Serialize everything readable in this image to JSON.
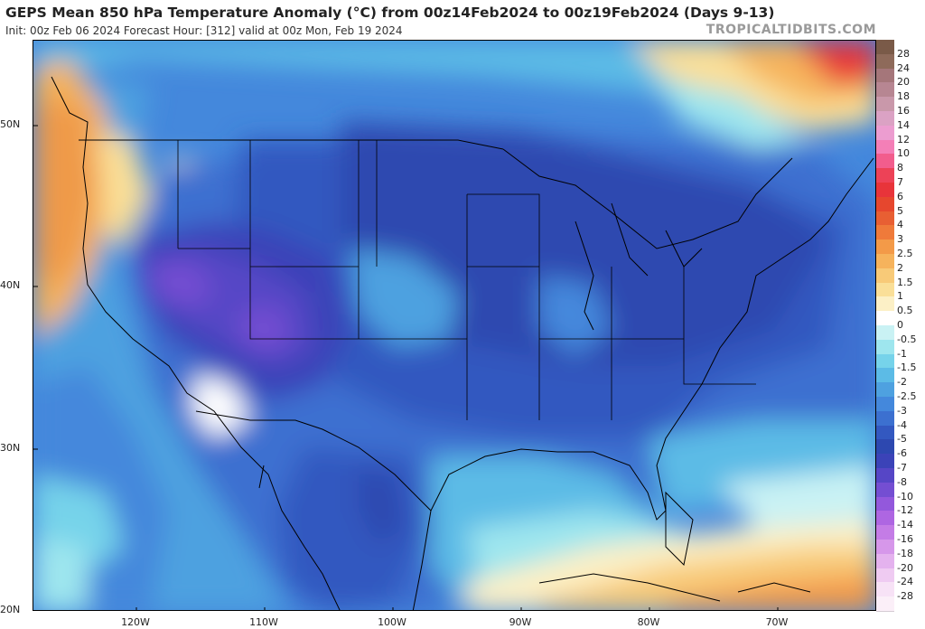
{
  "header": {
    "title": "GEPS Mean 850 hPa Temperature Anomaly (°C) from 00z14Feb2024 to 00z19Feb2024 (Days 9-13)",
    "subtitle": "Init: 00z Feb 06 2024   Forecast Hour: [312]   valid at 00z Mon, Feb 19 2024",
    "brand": "TROPICALTIDBITS.COM"
  },
  "map": {
    "latitude_labels": [
      "50N",
      "40N",
      "30N",
      "20N"
    ],
    "longitude_labels": [
      "120W",
      "110W",
      "100W",
      "90W",
      "80W",
      "70W"
    ]
  },
  "colorbar": {
    "levels": [
      {
        "label": "28",
        "color": "#7a5a48"
      },
      {
        "label": "24",
        "color": "#8e6a5a"
      },
      {
        "label": "20",
        "color": "#a5767a"
      },
      {
        "label": "18",
        "color": "#b78692"
      },
      {
        "label": "16",
        "color": "#c998aa"
      },
      {
        "label": "14",
        "color": "#dba2c4"
      },
      {
        "label": "12",
        "color": "#ec9dd0"
      },
      {
        "label": "10",
        "color": "#f47fb7"
      },
      {
        "label": "8",
        "color": "#f25d8d"
      },
      {
        "label": "7",
        "color": "#ed4257"
      },
      {
        "label": "6",
        "color": "#e8343a"
      },
      {
        "label": "5",
        "color": "#e6472e"
      },
      {
        "label": "4",
        "color": "#e85f33"
      },
      {
        "label": "3",
        "color": "#ef7a3a"
      },
      {
        "label": "2.5",
        "color": "#f39a48"
      },
      {
        "label": "2",
        "color": "#f6b35c"
      },
      {
        "label": "1.5",
        "color": "#f8ca78"
      },
      {
        "label": "1",
        "color": "#fadf98"
      },
      {
        "label": "0.5",
        "color": "#fcf0c6"
      },
      {
        "label": "0",
        "color": "#ffffff"
      },
      {
        "label": "-0.5",
        "color": "#c9f2f4"
      },
      {
        "label": "-1",
        "color": "#9ee6ee"
      },
      {
        "label": "-1.5",
        "color": "#76d3ea"
      },
      {
        "label": "-2",
        "color": "#5cbbe6"
      },
      {
        "label": "-2.5",
        "color": "#4ea1e0"
      },
      {
        "label": "-3",
        "color": "#4488dc"
      },
      {
        "label": "-4",
        "color": "#3c70d0"
      },
      {
        "label": "-5",
        "color": "#3358c0"
      },
      {
        "label": "-6",
        "color": "#2d48b0"
      },
      {
        "label": "-7",
        "color": "#3b43b8"
      },
      {
        "label": "-8",
        "color": "#5646c6"
      },
      {
        "label": "-10",
        "color": "#744ed2"
      },
      {
        "label": "-12",
        "color": "#9358dc"
      },
      {
        "label": "-14",
        "color": "#ae66e2"
      },
      {
        "label": "-16",
        "color": "#c47ce6"
      },
      {
        "label": "-18",
        "color": "#d697ea"
      },
      {
        "label": "-20",
        "color": "#e4b2ee"
      },
      {
        "label": "-24",
        "color": "#efcbf2"
      },
      {
        "label": "-28",
        "color": "#f7e2f6"
      },
      {
        "label": "",
        "color": "#fbeff8"
      }
    ]
  }
}
